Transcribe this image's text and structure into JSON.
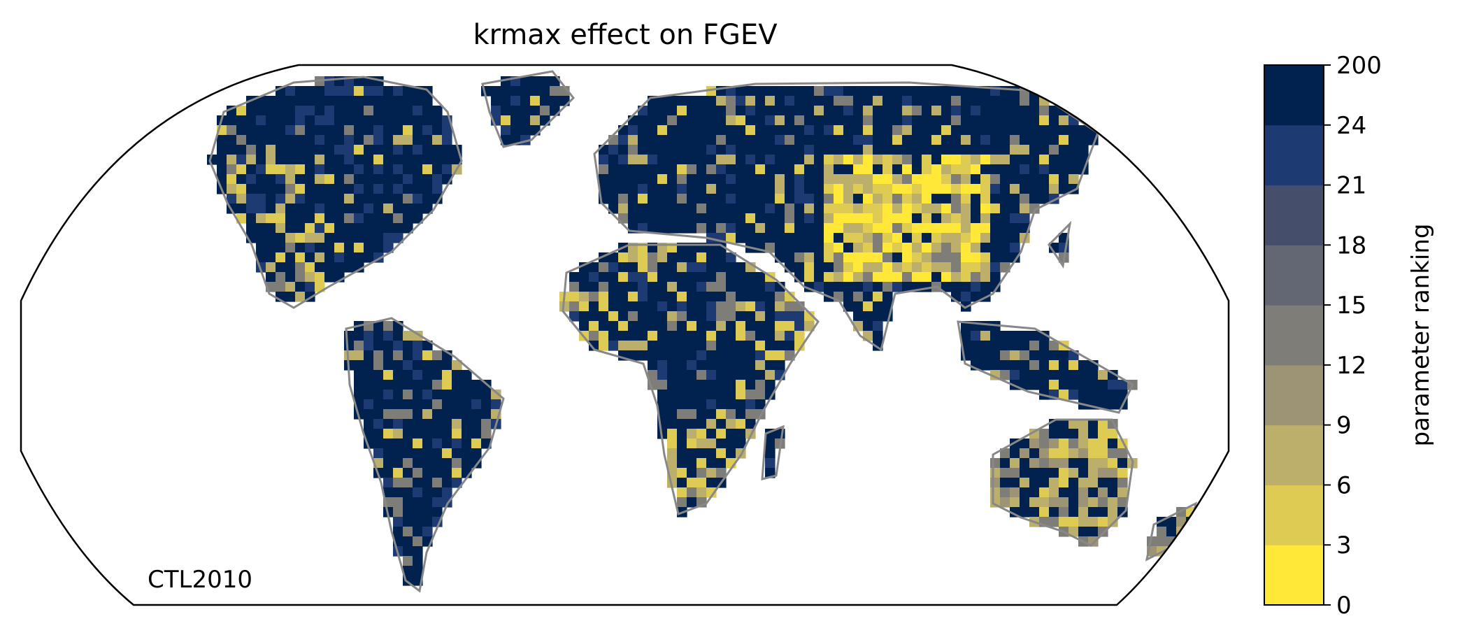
{
  "title": "krmax effect on FGEV",
  "map_label": "CTL2010",
  "colorbar": {
    "label": "parameter ranking",
    "tick_labels": [
      "0",
      "3",
      "6",
      "9",
      "12",
      "15",
      "18",
      "21",
      "24",
      "200"
    ],
    "bins": [
      {
        "from": "0",
        "to": "3",
        "color": "#ffe838"
      },
      {
        "from": "3",
        "to": "6",
        "color": "#decb53"
      },
      {
        "from": "6",
        "to": "9",
        "color": "#bcae6b"
      },
      {
        "from": "9",
        "to": "12",
        "color": "#9c9474"
      },
      {
        "from": "12",
        "to": "15",
        "color": "#7e7d78"
      },
      {
        "from": "15",
        "to": "18",
        "color": "#626773"
      },
      {
        "from": "18",
        "to": "21",
        "color": "#454f6b"
      },
      {
        "from": "21",
        "to": "24",
        "color": "#1e3a72"
      },
      {
        "from": "24",
        "to": "200",
        "color": "#01224f"
      }
    ]
  },
  "colors": {
    "coastline": "#888888",
    "map_outline": "#000000",
    "background": "#ffffff"
  },
  "projection": "Robinson",
  "regions": [
    {
      "name": "North America",
      "dominant_bin": "24-200"
    },
    {
      "name": "Greenland",
      "dominant_bin": "24-200"
    },
    {
      "name": "South America",
      "dominant_bin": "24-200"
    },
    {
      "name": "Africa",
      "dominant_bin": "24-200"
    },
    {
      "name": "Europe",
      "dominant_bin": "24-200"
    },
    {
      "name": "Northern Asia",
      "dominant_bin": "24-200"
    },
    {
      "name": "Central Asia",
      "dominant_bin": "0-9"
    },
    {
      "name": "Southeast Asia",
      "dominant_bin": "24-200"
    },
    {
      "name": "Australia",
      "dominant_bin": "9-15"
    }
  ]
}
